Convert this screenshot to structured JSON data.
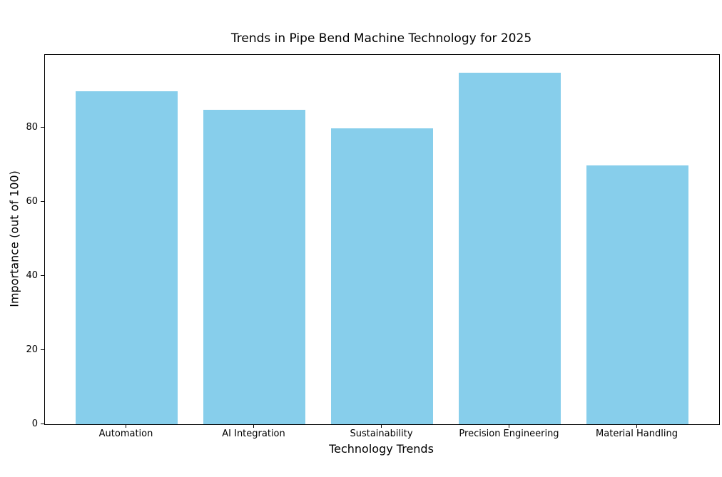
{
  "chart_data": {
    "type": "bar",
    "title": "Trends in Pipe Bend Machine Technology for 2025",
    "xlabel": "Technology Trends",
    "ylabel": "Importance (out of 100)",
    "categories": [
      "Automation",
      "AI Integration",
      "Sustainability",
      "Precision Engineering",
      "Material Handling"
    ],
    "values": [
      90,
      85,
      80,
      95,
      70
    ],
    "yticks": [
      0,
      20,
      40,
      60,
      80
    ],
    "ylim": [
      0,
      99.75
    ],
    "bar_color": "#87CEEB",
    "background_color": "#FFFFFF",
    "spine_color": "#000000",
    "text_color": "#000000",
    "grid": false,
    "legend": "none"
  }
}
